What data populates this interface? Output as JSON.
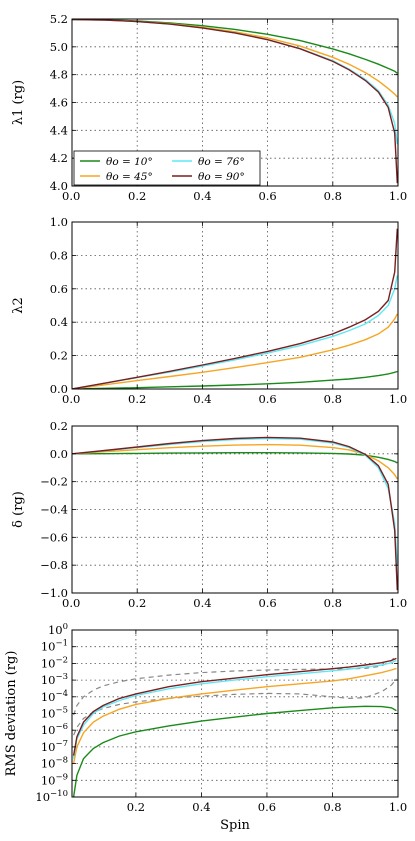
{
  "colors": {
    "th10": "#1a8a1a",
    "th45": "#f5a623",
    "th76": "#5ee8f5",
    "th90": "#7a1f1f",
    "dashed": "#888888"
  },
  "legend": [
    {
      "label": "θo = 10°",
      "color": "#1a8a1a"
    },
    {
      "label": "θo = 45°",
      "color": "#f5a623"
    },
    {
      "label": "θo = 76°",
      "color": "#5ee8f5"
    },
    {
      "label": "θo = 90°",
      "color": "#7a1f1f"
    }
  ],
  "chart_data": [
    {
      "type": "line",
      "ylabel": "λ1 (rg)",
      "xlim": [
        0,
        1
      ],
      "ylim": [
        4.0,
        5.2
      ],
      "xticks": [
        "0.0",
        "0.2",
        "0.4",
        "0.6",
        "0.8",
        "1.0"
      ],
      "yticks": [
        "4.0",
        "4.2",
        "4.4",
        "4.6",
        "4.8",
        "5.0",
        "5.2"
      ],
      "x": [
        0,
        0.1,
        0.2,
        0.3,
        0.4,
        0.5,
        0.6,
        0.7,
        0.8,
        0.85,
        0.9,
        0.94,
        0.97,
        0.99,
        0.998
      ],
      "series": [
        {
          "name": "θo = 10°",
          "color": "#1a8a1a",
          "values": [
            5.196,
            5.194,
            5.186,
            5.172,
            5.152,
            5.125,
            5.09,
            5.045,
            4.985,
            4.95,
            4.91,
            4.875,
            4.845,
            4.825,
            4.81
          ]
        },
        {
          "name": "θo = 45°",
          "color": "#f5a623",
          "values": [
            5.196,
            5.193,
            5.183,
            5.166,
            5.141,
            5.108,
            5.064,
            5.005,
            4.925,
            4.875,
            4.815,
            4.755,
            4.7,
            4.66,
            4.64
          ]
        },
        {
          "name": "θo = 76°",
          "color": "#5ee8f5",
          "values": [
            5.196,
            5.193,
            5.182,
            5.163,
            5.136,
            5.1,
            5.052,
            4.988,
            4.9,
            4.84,
            4.765,
            4.685,
            4.58,
            4.45,
            4.3
          ]
        },
        {
          "name": "θo = 90°",
          "color": "#7a1f1f",
          "values": [
            5.196,
            5.193,
            5.182,
            5.163,
            5.136,
            5.1,
            5.051,
            4.986,
            4.895,
            4.835,
            4.758,
            4.675,
            4.565,
            4.38,
            4.02
          ]
        }
      ]
    },
    {
      "type": "line",
      "ylabel": "λ2",
      "xlim": [
        0,
        1
      ],
      "ylim": [
        0.0,
        1.0
      ],
      "xticks": [
        "0.0",
        "0.2",
        "0.4",
        "0.6",
        "0.8",
        "1.0"
      ],
      "yticks": [
        "0.0",
        "0.2",
        "0.4",
        "0.6",
        "0.8",
        "1.0"
      ],
      "x": [
        0,
        0.1,
        0.2,
        0.3,
        0.4,
        0.5,
        0.6,
        0.7,
        0.8,
        0.85,
        0.9,
        0.94,
        0.97,
        0.99,
        0.998
      ],
      "series": [
        {
          "name": "θo = 10°",
          "color": "#1a8a1a",
          "values": [
            0.0,
            0.004,
            0.008,
            0.013,
            0.018,
            0.024,
            0.031,
            0.04,
            0.053,
            0.06,
            0.07,
            0.08,
            0.09,
            0.1,
            0.105
          ]
        },
        {
          "name": "θo = 45°",
          "color": "#f5a623",
          "values": [
            0.0,
            0.025,
            0.05,
            0.075,
            0.1,
            0.128,
            0.158,
            0.19,
            0.235,
            0.262,
            0.295,
            0.33,
            0.37,
            0.42,
            0.45
          ]
        },
        {
          "name": "θo = 76°",
          "color": "#5ee8f5",
          "values": [
            0.0,
            0.034,
            0.068,
            0.102,
            0.138,
            0.175,
            0.215,
            0.26,
            0.315,
            0.35,
            0.39,
            0.44,
            0.5,
            0.6,
            0.68
          ]
        },
        {
          "name": "θo = 90°",
          "color": "#7a1f1f",
          "values": [
            0.0,
            0.035,
            0.07,
            0.106,
            0.144,
            0.183,
            0.225,
            0.272,
            0.33,
            0.37,
            0.415,
            0.465,
            0.53,
            0.7,
            0.96
          ]
        }
      ]
    },
    {
      "type": "line",
      "ylabel": "δ (rg)",
      "xlim": [
        0,
        1
      ],
      "ylim": [
        -1.0,
        0.2
      ],
      "xticks": [
        "0.0",
        "0.2",
        "0.4",
        "0.6",
        "0.8",
        "1.0"
      ],
      "yticks": [
        "−1.0",
        "−0.8",
        "−0.6",
        "−0.4",
        "−0.2",
        "0.0",
        "0.2"
      ],
      "x": [
        0,
        0.1,
        0.2,
        0.3,
        0.4,
        0.5,
        0.6,
        0.7,
        0.8,
        0.85,
        0.9,
        0.94,
        0.97,
        0.99,
        0.998
      ],
      "series": [
        {
          "name": "θo = 10°",
          "color": "#1a8a1a",
          "values": [
            0.0,
            0.001,
            0.003,
            0.005,
            0.007,
            0.008,
            0.008,
            0.007,
            0.003,
            -0.001,
            -0.01,
            -0.025,
            -0.04,
            -0.055,
            -0.065
          ]
        },
        {
          "name": "θo = 45°",
          "color": "#f5a623",
          "values": [
            0.0,
            0.015,
            0.03,
            0.044,
            0.055,
            0.063,
            0.066,
            0.062,
            0.045,
            0.028,
            -0.005,
            -0.05,
            -0.1,
            -0.15,
            -0.18
          ]
        },
        {
          "name": "θo = 76°",
          "color": "#5ee8f5",
          "values": [
            0.0,
            0.022,
            0.045,
            0.068,
            0.088,
            0.103,
            0.11,
            0.105,
            0.078,
            0.045,
            -0.01,
            -0.1,
            -0.25,
            -0.5,
            -0.8
          ]
        },
        {
          "name": "θo = 90°",
          "color": "#7a1f1f",
          "values": [
            0.0,
            0.024,
            0.049,
            0.074,
            0.095,
            0.11,
            0.118,
            0.112,
            0.085,
            0.052,
            -0.005,
            -0.085,
            -0.22,
            -0.55,
            -0.98
          ]
        }
      ]
    },
    {
      "type": "line",
      "ylabel": "RMS deviation (rg)",
      "xlabel": "Spin",
      "yscale": "log",
      "xlim": [
        0.005,
        1
      ],
      "ylim": [
        1e-10,
        1
      ],
      "xticks": [
        "0.2",
        "0.4",
        "0.6",
        "0.8",
        "1.0"
      ],
      "yticks": [
        "10−10",
        "10−9",
        "10−8",
        "10−7",
        "10−6",
        "10−5",
        "10−4",
        "10−3",
        "10−2",
        "10−1",
        "100"
      ],
      "x": [
        0.01,
        0.02,
        0.04,
        0.07,
        0.1,
        0.15,
        0.2,
        0.3,
        0.4,
        0.5,
        0.6,
        0.7,
        0.8,
        0.85,
        0.9,
        0.95,
        0.98,
        0.995
      ],
      "series": [
        {
          "name": "θo = 10°",
          "color": "#1a8a1a",
          "values": [
            1e-10,
            2e-09,
            2e-08,
            8e-08,
            1.8e-07,
            4.5e-07,
            8e-07,
            1.8e-06,
            3.5e-06,
            6e-06,
            1e-05,
            1.5e-05,
            2.2e-05,
            2.5e-05,
            2.7e-05,
            2.6e-05,
            2.2e-05,
            1.5e-05
          ]
        },
        {
          "name": "θo = 45°",
          "color": "#f5a623",
          "values": [
            1e-08,
            1e-07,
            7e-07,
            3e-06,
            7e-06,
            1.8e-05,
            3.5e-05,
            8e-05,
            0.00015,
            0.00025,
            0.0004,
            0.0006,
            0.0009,
            0.0012,
            0.0018,
            0.0028,
            0.004,
            0.005
          ]
        },
        {
          "name": "θo = 76°",
          "color": "#5ee8f5",
          "values": [
            2e-08,
            3e-07,
            2e-06,
            1e-05,
            2.5e-05,
            6e-05,
            0.00012,
            0.0003,
            0.0006,
            0.001,
            0.0016,
            0.0024,
            0.0036,
            0.0045,
            0.006,
            0.008,
            0.011,
            0.015
          ]
        },
        {
          "name": "θo = 90°",
          "color": "#7a1f1f",
          "values": [
            3e-08,
            4e-07,
            3e-06,
            1.3e-05,
            3e-05,
            8e-05,
            0.00015,
            0.0004,
            0.0008,
            0.0013,
            0.0021,
            0.0032,
            0.0048,
            0.006,
            0.008,
            0.011,
            0.015,
            0.02
          ]
        }
      ],
      "dashed_series": [
        {
          "values": [
            8e-06,
            3e-05,
            0.0001,
            0.00025,
            0.00045,
            0.0008,
            0.0012,
            0.002,
            0.0028,
            0.0035,
            0.004,
            0.0044,
            0.0046,
            0.0047,
            0.005,
            0.007,
            0.015,
            0.03
          ]
        },
        {
          "values": [
            5e-07,
            1.5e-06,
            5e-06,
            1.2e-05,
            2e-05,
            3.5e-05,
            5e-05,
            8e-05,
            0.00011,
            0.00014,
            0.00016,
            0.00015,
            0.0001,
            8e-05,
            9e-05,
            0.0002,
            0.0005,
            0.0012
          ]
        }
      ]
    }
  ]
}
